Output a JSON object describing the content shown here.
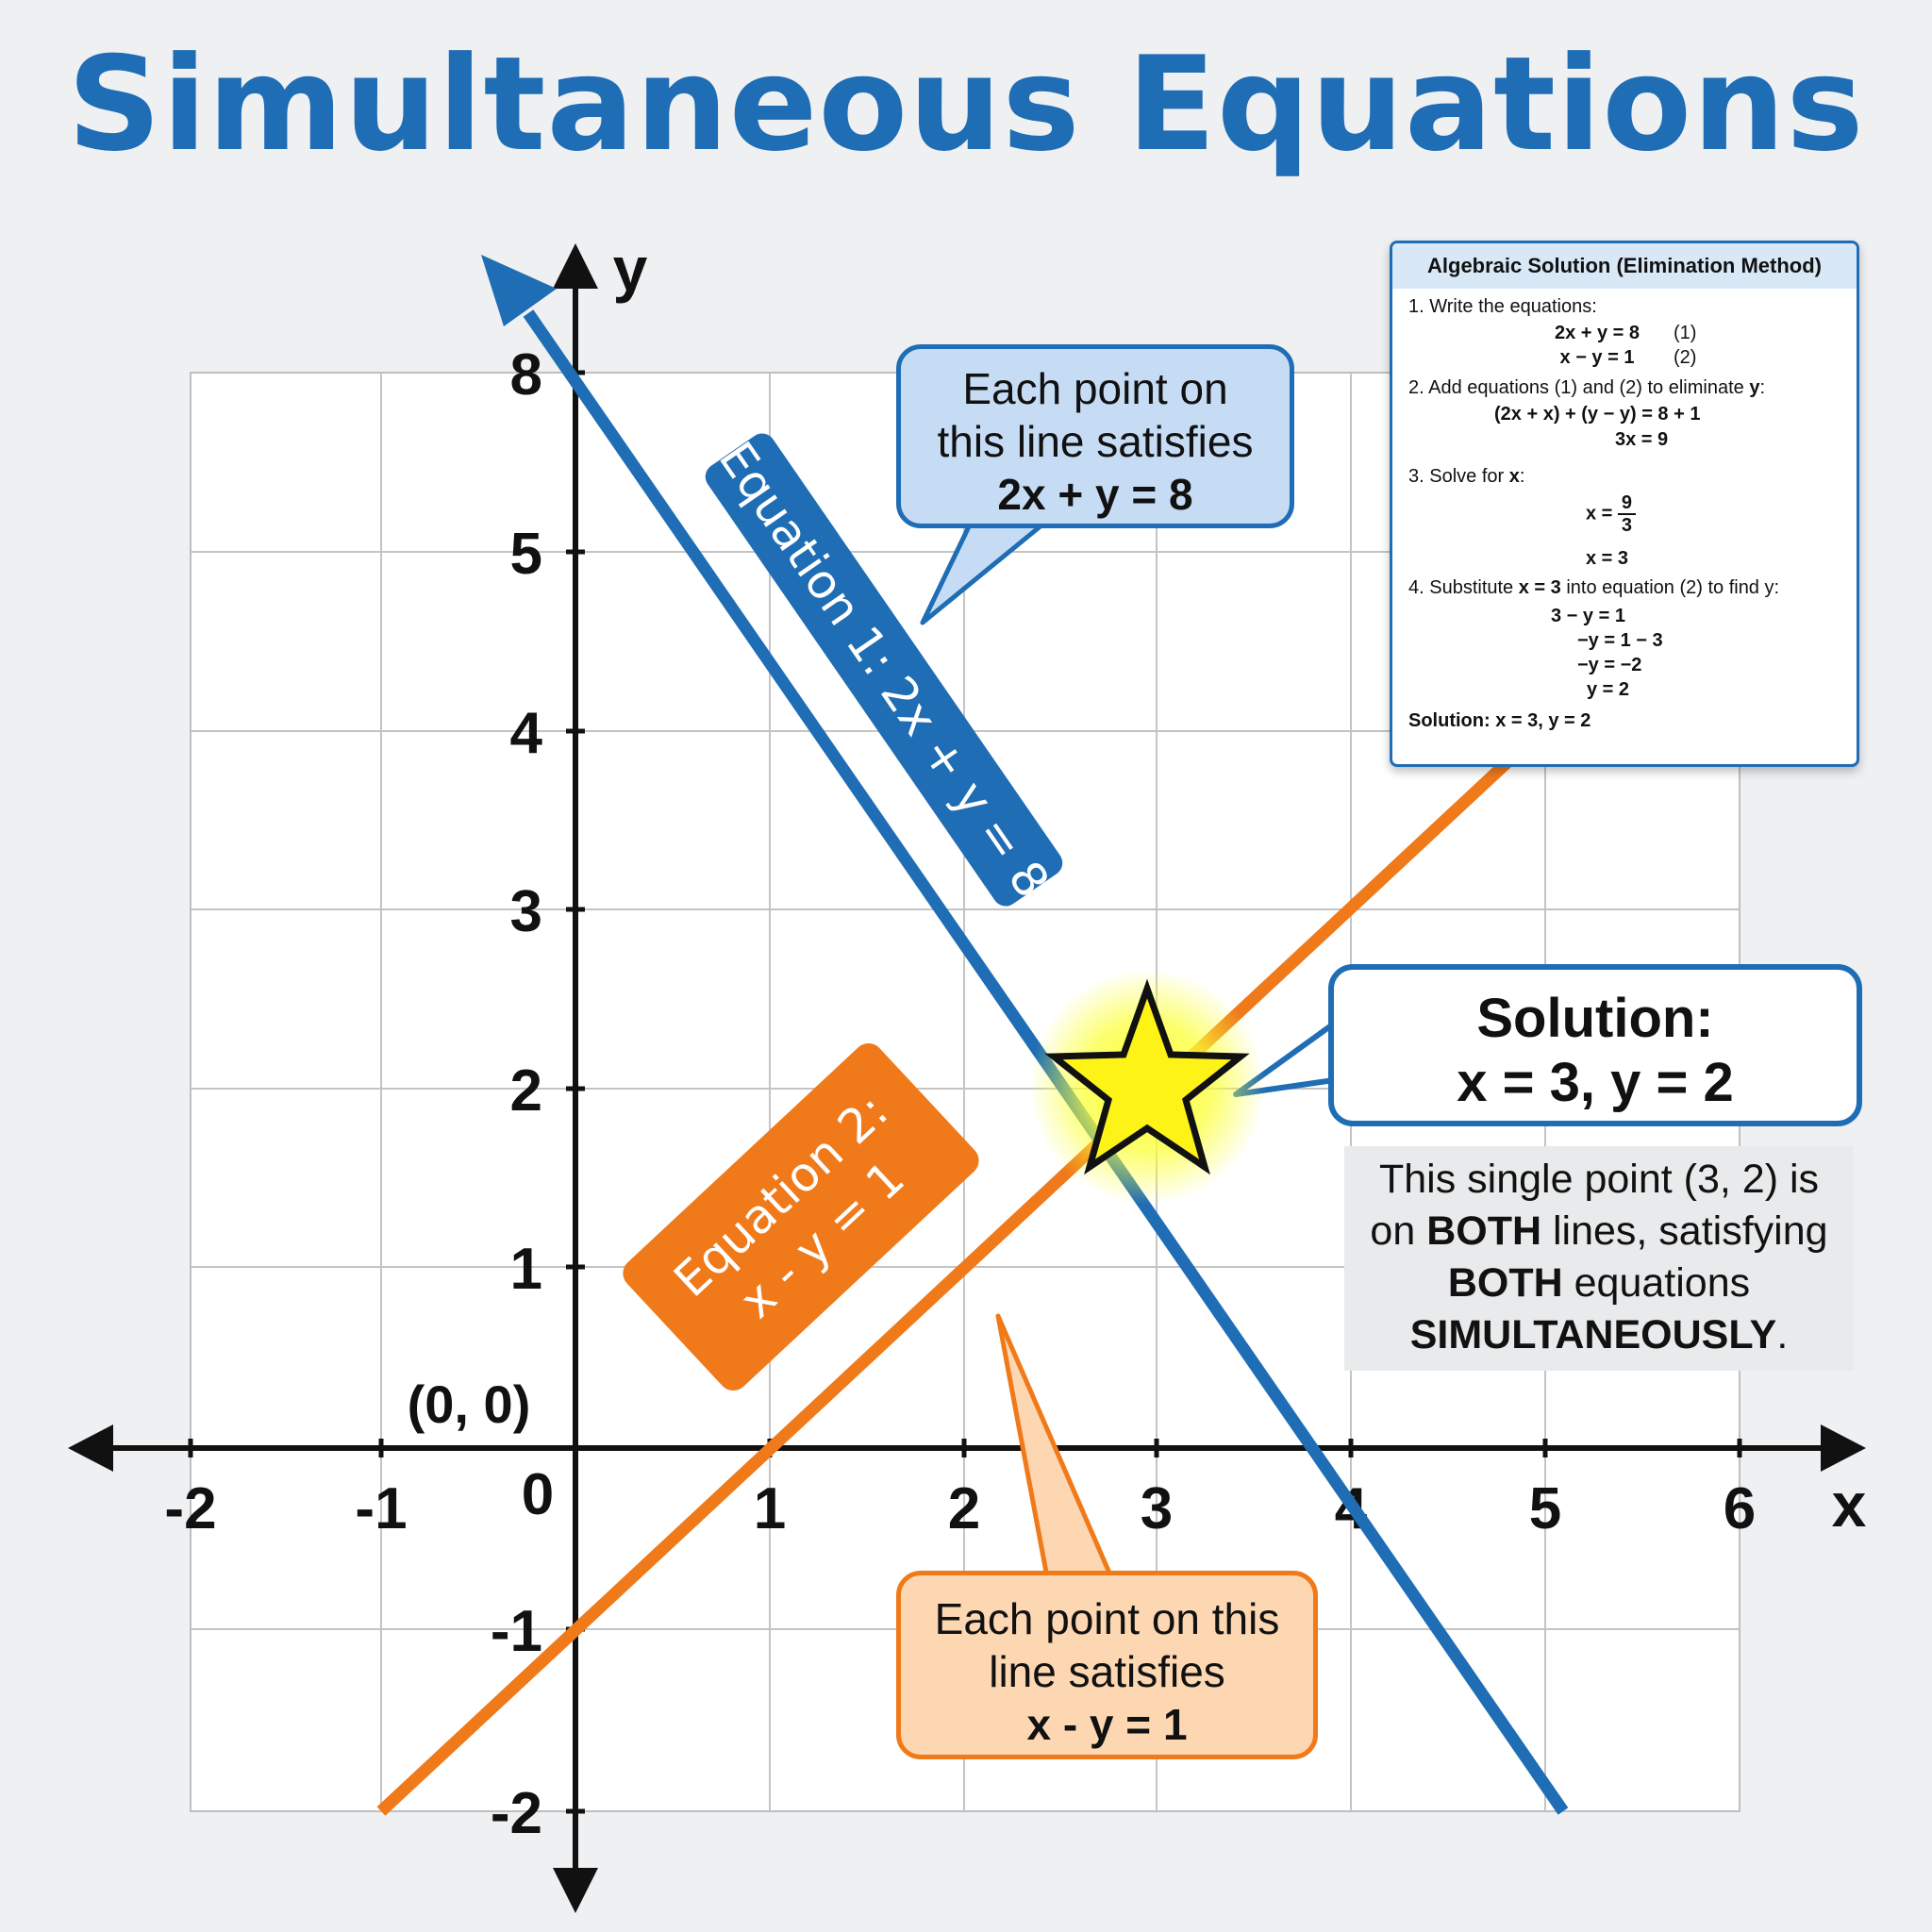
{
  "title": "Simultaneous Equations",
  "axes": {
    "x_name": "x",
    "y_name": "y",
    "x_ticks": [
      "-2",
      "-1",
      "1",
      "2",
      "3",
      "4",
      "5",
      "6"
    ],
    "y_ticks": [
      "8",
      "5",
      "4",
      "3",
      "2",
      "1",
      "-1",
      "-2"
    ],
    "zero_label": "0",
    "origin_label": "(0, 0)"
  },
  "lines": {
    "eq1": {
      "label": "Equation 1: 2x + y = 8",
      "color": "#1f6db5"
    },
    "eq2": {
      "label_line1": "Equation 2:",
      "label_line2": "x - y = 1",
      "color": "#f07a1a"
    }
  },
  "callouts": {
    "eq1": {
      "line1": "Each point on",
      "line2": "this line satisfies",
      "line3": "2x + y = 8"
    },
    "eq2": {
      "line1": "Each point on this",
      "line2": "line satisfies",
      "line3": "x - y = 1"
    },
    "solution": {
      "heading": "Solution:",
      "value": "x = 3, y = 2"
    }
  },
  "solution_note": {
    "part1": "This single point (3, 2) is",
    "part2": "on ",
    "bold1": "BOTH",
    "part3": " lines, satisfying",
    "bold2": "BOTH",
    "part4": " equations",
    "bold3": "SIMULTANEOUSLY",
    "part5": "."
  },
  "algebraic_box": {
    "title": "Algebraic Solution (Elimination Method)",
    "step1": "1. Write the equations:",
    "eqA": "2x + y = 8",
    "eqA_tag": "(1)",
    "eqB": "x − y = 1",
    "eqB_tag": "(2)",
    "step2_prefix": "2. Add equations (1) and (2) to eliminate ",
    "step2_var": "y",
    "step2_suffix": ":",
    "add_line": "(2x + x) + (y − y) = 8 + 1",
    "add_result": "3x = 9",
    "step3_prefix": "3. Solve for ",
    "step3_var": "x",
    "step3_suffix": ":",
    "frac_lhs": "x =",
    "frac_num": "9",
    "frac_den": "3",
    "x_result": "x = 3",
    "step4_prefix": "4. Substitute ",
    "step4_bold": "x = 3",
    "step4_suffix": " into equation (2) to find y:",
    "sub1": "3 − y = 1",
    "sub2": "−y = 1 − 3",
    "sub3": "−y = −2",
    "sub4": "y = 2",
    "final_label": "Solution:",
    "final_value": " x = 3, y = 2"
  },
  "solution_point": {
    "x": 3,
    "y": 2
  }
}
